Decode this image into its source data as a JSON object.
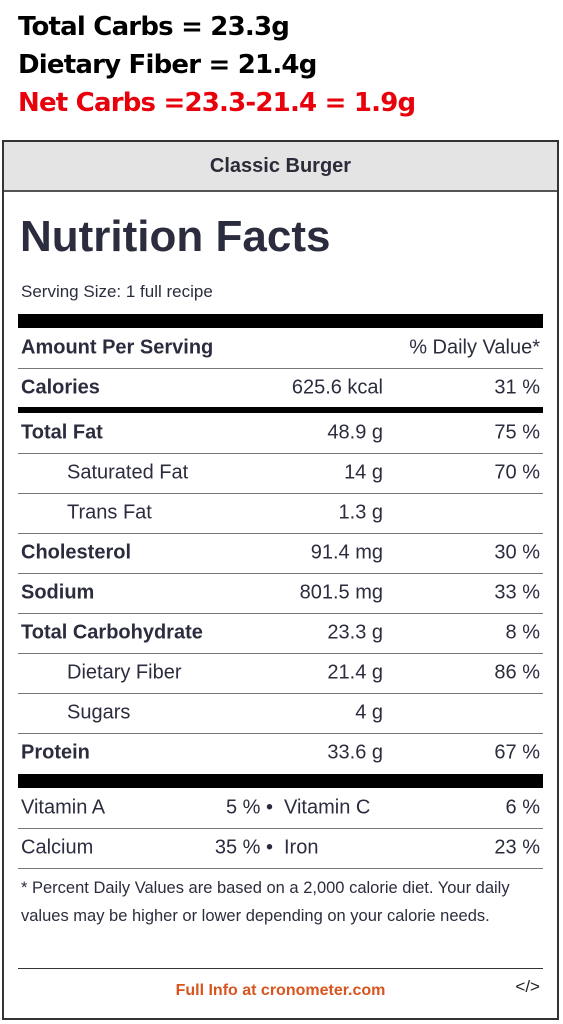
{
  "annotations": {
    "line1": "Total Carbs = 23.3g",
    "line2": "Dietary Fiber = 21.4g",
    "line3": "Net Carbs =23.3-21.4 = 1.9g",
    "line3_color": "#e8000b"
  },
  "card": {
    "recipe_name": "Classic Burger",
    "title": "Nutrition Facts",
    "serving_size": "Serving Size: 1 full recipe",
    "header": {
      "amount_per_serving": "Amount Per Serving",
      "daily_value": "% Daily Value*"
    },
    "calories": {
      "label": "Calories",
      "amount": "625.6 kcal",
      "dv": "31 %"
    },
    "nutrients": [
      {
        "label": "Total Fat",
        "amount": "48.9 g",
        "dv": "75 %"
      },
      {
        "label": "Saturated Fat",
        "amount": "14 g",
        "dv": "70 %"
      },
      {
        "label": "Trans Fat",
        "amount": "1.3 g",
        "dv": ""
      },
      {
        "label": "Cholesterol",
        "amount": "91.4 mg",
        "dv": "30 %"
      },
      {
        "label": "Sodium",
        "amount": "801.5 mg",
        "dv": "33 %"
      },
      {
        "label": "Total Carbohydrate",
        "amount": "23.3 g",
        "dv": "8 %"
      },
      {
        "label": "Dietary Fiber",
        "amount": "21.4 g",
        "dv": "86 %"
      },
      {
        "label": "Sugars",
        "amount": "4 g",
        "dv": ""
      },
      {
        "label": "Protein",
        "amount": "33.6 g",
        "dv": "67 %"
      }
    ],
    "vitamins": [
      {
        "left_label": "Vitamin A",
        "left_value": "5 % •",
        "right_label": "Vitamin C",
        "right_value": "6 %"
      },
      {
        "left_label": "Calcium",
        "left_value": "35 % •",
        "right_label": "Iron",
        "right_value": "23 %"
      }
    ],
    "footnote": "* Percent Daily Values are based on a 2,000 calorie diet. Your daily values may be higher or lower depending on your calorie needs.",
    "link_text": "Full Info at cronometer.com",
    "embed_label": "</>",
    "accent_color": "#d9541e"
  }
}
